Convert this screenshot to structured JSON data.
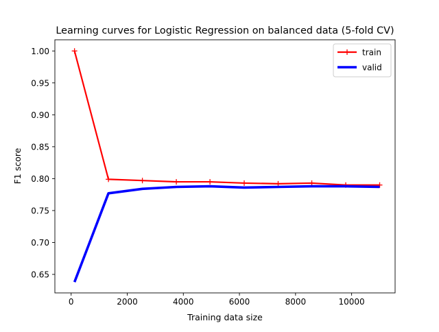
{
  "chart_data": {
    "type": "line",
    "title": "Learning curves for Logistic Regression on balanced data (5-fold CV)",
    "xlabel": "Training data size",
    "ylabel": "F1 score",
    "xlim": [
      -580,
      11550
    ],
    "ylim": [
      0.621,
      1.0175
    ],
    "xticks": [
      0,
      2000,
      4000,
      6000,
      8000,
      10000
    ],
    "yticks": [
      0.65,
      0.7,
      0.75,
      0.8,
      0.85,
      0.9,
      0.95,
      1.0
    ],
    "grid": false,
    "legend_position": "upper right",
    "series": [
      {
        "name": "train",
        "color": "#ff0000",
        "marker": "plus",
        "x": [
          120,
          1330,
          2540,
          3750,
          4950,
          6170,
          7380,
          8580,
          9790,
          11000
        ],
        "y": [
          1.0,
          0.799,
          0.797,
          0.795,
          0.795,
          0.793,
          0.792,
          0.793,
          0.79,
          0.79
        ]
      },
      {
        "name": "valid",
        "color": "#0000ff",
        "marker": "none",
        "x": [
          120,
          1330,
          2540,
          3750,
          4950,
          6170,
          7380,
          8580,
          9790,
          11000
        ],
        "y": [
          0.638,
          0.777,
          0.784,
          0.787,
          0.788,
          0.786,
          0.787,
          0.788,
          0.788,
          0.787
        ]
      }
    ]
  }
}
